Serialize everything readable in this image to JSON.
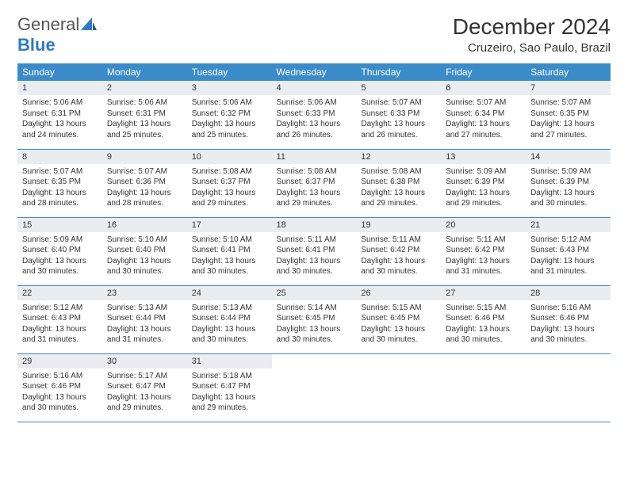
{
  "logo": {
    "word1": "General",
    "word2": "Blue"
  },
  "title": "December 2024",
  "location": "Cruzeiro, Sao Paulo, Brazil",
  "header_bg": "#3b8bc9",
  "daynum_bg": "#e9edef",
  "border_color": "#3b8bc9",
  "weekdays": [
    "Sunday",
    "Monday",
    "Tuesday",
    "Wednesday",
    "Thursday",
    "Friday",
    "Saturday"
  ],
  "weeks": [
    [
      {
        "n": "1",
        "sr": "5:06 AM",
        "ss": "6:31 PM",
        "dl": "13 hours and 24 minutes."
      },
      {
        "n": "2",
        "sr": "5:06 AM",
        "ss": "6:31 PM",
        "dl": "13 hours and 25 minutes."
      },
      {
        "n": "3",
        "sr": "5:06 AM",
        "ss": "6:32 PM",
        "dl": "13 hours and 25 minutes."
      },
      {
        "n": "4",
        "sr": "5:06 AM",
        "ss": "6:33 PM",
        "dl": "13 hours and 26 minutes."
      },
      {
        "n": "5",
        "sr": "5:07 AM",
        "ss": "6:33 PM",
        "dl": "13 hours and 26 minutes."
      },
      {
        "n": "6",
        "sr": "5:07 AM",
        "ss": "6:34 PM",
        "dl": "13 hours and 27 minutes."
      },
      {
        "n": "7",
        "sr": "5:07 AM",
        "ss": "6:35 PM",
        "dl": "13 hours and 27 minutes."
      }
    ],
    [
      {
        "n": "8",
        "sr": "5:07 AM",
        "ss": "6:35 PM",
        "dl": "13 hours and 28 minutes."
      },
      {
        "n": "9",
        "sr": "5:07 AM",
        "ss": "6:36 PM",
        "dl": "13 hours and 28 minutes."
      },
      {
        "n": "10",
        "sr": "5:08 AM",
        "ss": "6:37 PM",
        "dl": "13 hours and 29 minutes."
      },
      {
        "n": "11",
        "sr": "5:08 AM",
        "ss": "6:37 PM",
        "dl": "13 hours and 29 minutes."
      },
      {
        "n": "12",
        "sr": "5:08 AM",
        "ss": "6:38 PM",
        "dl": "13 hours and 29 minutes."
      },
      {
        "n": "13",
        "sr": "5:09 AM",
        "ss": "6:39 PM",
        "dl": "13 hours and 29 minutes."
      },
      {
        "n": "14",
        "sr": "5:09 AM",
        "ss": "6:39 PM",
        "dl": "13 hours and 30 minutes."
      }
    ],
    [
      {
        "n": "15",
        "sr": "5:09 AM",
        "ss": "6:40 PM",
        "dl": "13 hours and 30 minutes."
      },
      {
        "n": "16",
        "sr": "5:10 AM",
        "ss": "6:40 PM",
        "dl": "13 hours and 30 minutes."
      },
      {
        "n": "17",
        "sr": "5:10 AM",
        "ss": "6:41 PM",
        "dl": "13 hours and 30 minutes."
      },
      {
        "n": "18",
        "sr": "5:11 AM",
        "ss": "6:41 PM",
        "dl": "13 hours and 30 minutes."
      },
      {
        "n": "19",
        "sr": "5:11 AM",
        "ss": "6:42 PM",
        "dl": "13 hours and 30 minutes."
      },
      {
        "n": "20",
        "sr": "5:11 AM",
        "ss": "6:42 PM",
        "dl": "13 hours and 31 minutes."
      },
      {
        "n": "21",
        "sr": "5:12 AM",
        "ss": "6:43 PM",
        "dl": "13 hours and 31 minutes."
      }
    ],
    [
      {
        "n": "22",
        "sr": "5:12 AM",
        "ss": "6:43 PM",
        "dl": "13 hours and 31 minutes."
      },
      {
        "n": "23",
        "sr": "5:13 AM",
        "ss": "6:44 PM",
        "dl": "13 hours and 31 minutes."
      },
      {
        "n": "24",
        "sr": "5:13 AM",
        "ss": "6:44 PM",
        "dl": "13 hours and 30 minutes."
      },
      {
        "n": "25",
        "sr": "5:14 AM",
        "ss": "6:45 PM",
        "dl": "13 hours and 30 minutes."
      },
      {
        "n": "26",
        "sr": "5:15 AM",
        "ss": "6:45 PM",
        "dl": "13 hours and 30 minutes."
      },
      {
        "n": "27",
        "sr": "5:15 AM",
        "ss": "6:46 PM",
        "dl": "13 hours and 30 minutes."
      },
      {
        "n": "28",
        "sr": "5:16 AM",
        "ss": "6:46 PM",
        "dl": "13 hours and 30 minutes."
      }
    ],
    [
      {
        "n": "29",
        "sr": "5:16 AM",
        "ss": "6:46 PM",
        "dl": "13 hours and 30 minutes."
      },
      {
        "n": "30",
        "sr": "5:17 AM",
        "ss": "6:47 PM",
        "dl": "13 hours and 29 minutes."
      },
      {
        "n": "31",
        "sr": "5:18 AM",
        "ss": "6:47 PM",
        "dl": "13 hours and 29 minutes."
      },
      null,
      null,
      null,
      null
    ]
  ],
  "labels": {
    "sunrise": "Sunrise:",
    "sunset": "Sunset:",
    "daylight": "Daylight:"
  }
}
